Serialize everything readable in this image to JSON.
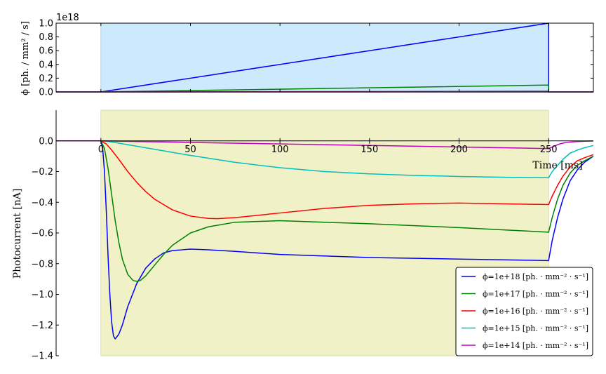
{
  "chart_data": [
    {
      "type": "line",
      "ylabel": "ϕ [ph. / mm² / s]",
      "yscale_label": "1e18",
      "xlim": [
        -25,
        275
      ],
      "ylim": [
        0,
        1.0
      ],
      "yticks": [
        "0.0",
        "0.2",
        "0.4",
        "0.6",
        "0.8",
        "1.0"
      ],
      "shaded_interval": [
        0,
        250
      ],
      "shade_color": "#cdeafd",
      "series": [
        {
          "name": "ϕ=1e+18 [ph. · mm⁻² · s⁻¹]",
          "color": "#0000ff",
          "x": [
            -25,
            0,
            250,
            250,
            275
          ],
          "y": [
            0,
            0,
            1.0,
            0,
            0
          ]
        },
        {
          "name": "ϕ=1e+17 [ph. · mm⁻² · s⁻¹]",
          "color": "#008000",
          "x": [
            -25,
            0,
            250,
            250,
            275
          ],
          "y": [
            0,
            0,
            0.1,
            0,
            0
          ]
        },
        {
          "name": "ϕ=1e+16 [ph. · mm⁻² · s⁻¹]",
          "color": "#ff0000",
          "x": [
            -25,
            0,
            250,
            250,
            275
          ],
          "y": [
            0,
            0,
            0.01,
            0,
            0
          ]
        },
        {
          "name": "ϕ=1e+15 [ph. · mm⁻² · s⁻¹]",
          "color": "#00bfbf",
          "x": [
            -25,
            0,
            250,
            250,
            275
          ],
          "y": [
            0,
            0,
            0.001,
            0,
            0
          ]
        },
        {
          "name": "ϕ=1e+14 [ph. · mm⁻² · s⁻¹]",
          "color": "#bf00bf",
          "x": [
            -25,
            0,
            250,
            250,
            275
          ],
          "y": [
            0,
            0,
            0.0001,
            0,
            0
          ]
        }
      ]
    },
    {
      "type": "line",
      "xlabel": "Time [ms]",
      "ylabel": "Photocurrent [nA]",
      "xlim": [
        -25,
        275
      ],
      "ylim": [
        -1.4,
        0.2
      ],
      "xticks": [
        "0",
        "50",
        "100",
        "150",
        "200",
        "250"
      ],
      "yticks": [
        "0.0",
        "−0.2",
        "−0.4",
        "−0.6",
        "−0.8",
        "−1.0",
        "−1.2",
        "−1.4"
      ],
      "shaded_interval": [
        0,
        250
      ],
      "shade_color": "#f1f1c8",
      "legend_position": "lower right",
      "series": [
        {
          "name": "ϕ=1e+18 [ph. · mm⁻² · s⁻¹]",
          "color": "#0000ff",
          "x": [
            -25,
            0,
            1,
            2,
            3,
            4,
            5,
            6,
            7,
            8,
            10,
            12,
            15,
            20,
            25,
            30,
            35,
            40,
            45,
            50,
            60,
            75,
            100,
            150,
            200,
            250,
            252,
            255,
            258,
            262,
            266,
            270,
            275
          ],
          "y": [
            0,
            0,
            -0.05,
            -0.2,
            -0.45,
            -0.75,
            -1.0,
            -1.18,
            -1.27,
            -1.29,
            -1.26,
            -1.2,
            -1.08,
            -0.93,
            -0.83,
            -0.77,
            -0.73,
            -0.715,
            -0.71,
            -0.705,
            -0.71,
            -0.72,
            -0.74,
            -0.76,
            -0.77,
            -0.78,
            -0.65,
            -0.5,
            -0.38,
            -0.26,
            -0.19,
            -0.14,
            -0.1
          ]
        },
        {
          "name": "ϕ=1e+17 [ph. · mm⁻² · s⁻¹]",
          "color": "#008000",
          "x": [
            -25,
            0,
            2,
            4,
            6,
            8,
            10,
            12,
            15,
            18,
            20,
            22,
            25,
            30,
            35,
            40,
            50,
            60,
            75,
            100,
            125,
            150,
            200,
            250,
            252,
            255,
            258,
            262,
            266,
            270,
            275
          ],
          "y": [
            0,
            0,
            -0.05,
            -0.18,
            -0.35,
            -0.52,
            -0.66,
            -0.77,
            -0.87,
            -0.91,
            -0.915,
            -0.91,
            -0.88,
            -0.81,
            -0.74,
            -0.68,
            -0.6,
            -0.56,
            -0.53,
            -0.52,
            -0.53,
            -0.54,
            -0.565,
            -0.595,
            -0.5,
            -0.38,
            -0.29,
            -0.21,
            -0.16,
            -0.13,
            -0.1
          ]
        },
        {
          "name": "ϕ=1e+16 [ph. · mm⁻² · s⁻¹]",
          "color": "#ff0000",
          "x": [
            -25,
            0,
            3,
            6,
            10,
            15,
            20,
            25,
            30,
            40,
            50,
            60,
            65,
            75,
            100,
            125,
            150,
            175,
            200,
            225,
            250,
            252,
            255,
            258,
            262,
            266,
            270,
            275
          ],
          "y": [
            0,
            0,
            -0.02,
            -0.06,
            -0.12,
            -0.2,
            -0.27,
            -0.33,
            -0.38,
            -0.45,
            -0.49,
            -0.505,
            -0.507,
            -0.5,
            -0.47,
            -0.44,
            -0.42,
            -0.41,
            -0.405,
            -0.41,
            -0.415,
            -0.36,
            -0.29,
            -0.23,
            -0.17,
            -0.13,
            -0.11,
            -0.09
          ]
        },
        {
          "name": "ϕ=1e+15 [ph. · mm⁻² · s⁻¹]",
          "color": "#00bfbf",
          "x": [
            -25,
            0,
            5,
            10,
            20,
            30,
            40,
            50,
            75,
            100,
            125,
            150,
            175,
            200,
            225,
            250,
            252,
            255,
            258,
            262,
            266,
            270,
            275
          ],
          "y": [
            0,
            0,
            -0.005,
            -0.015,
            -0.035,
            -0.055,
            -0.075,
            -0.095,
            -0.14,
            -0.175,
            -0.2,
            -0.215,
            -0.225,
            -0.232,
            -0.237,
            -0.24,
            -0.2,
            -0.16,
            -0.12,
            -0.08,
            -0.06,
            -0.045,
            -0.03
          ]
        },
        {
          "name": "ϕ=1e+14 [ph. · mm⁻² · s⁻¹]",
          "color": "#bf00bf",
          "x": [
            -25,
            0,
            25,
            50,
            100,
            150,
            200,
            250,
            253,
            256,
            260,
            265,
            270,
            275
          ],
          "y": [
            0,
            0,
            -0.005,
            -0.01,
            -0.02,
            -0.03,
            -0.04,
            -0.05,
            -0.035,
            -0.02,
            -0.01,
            -0.005,
            -0.002,
            -0.001
          ]
        }
      ]
    }
  ]
}
